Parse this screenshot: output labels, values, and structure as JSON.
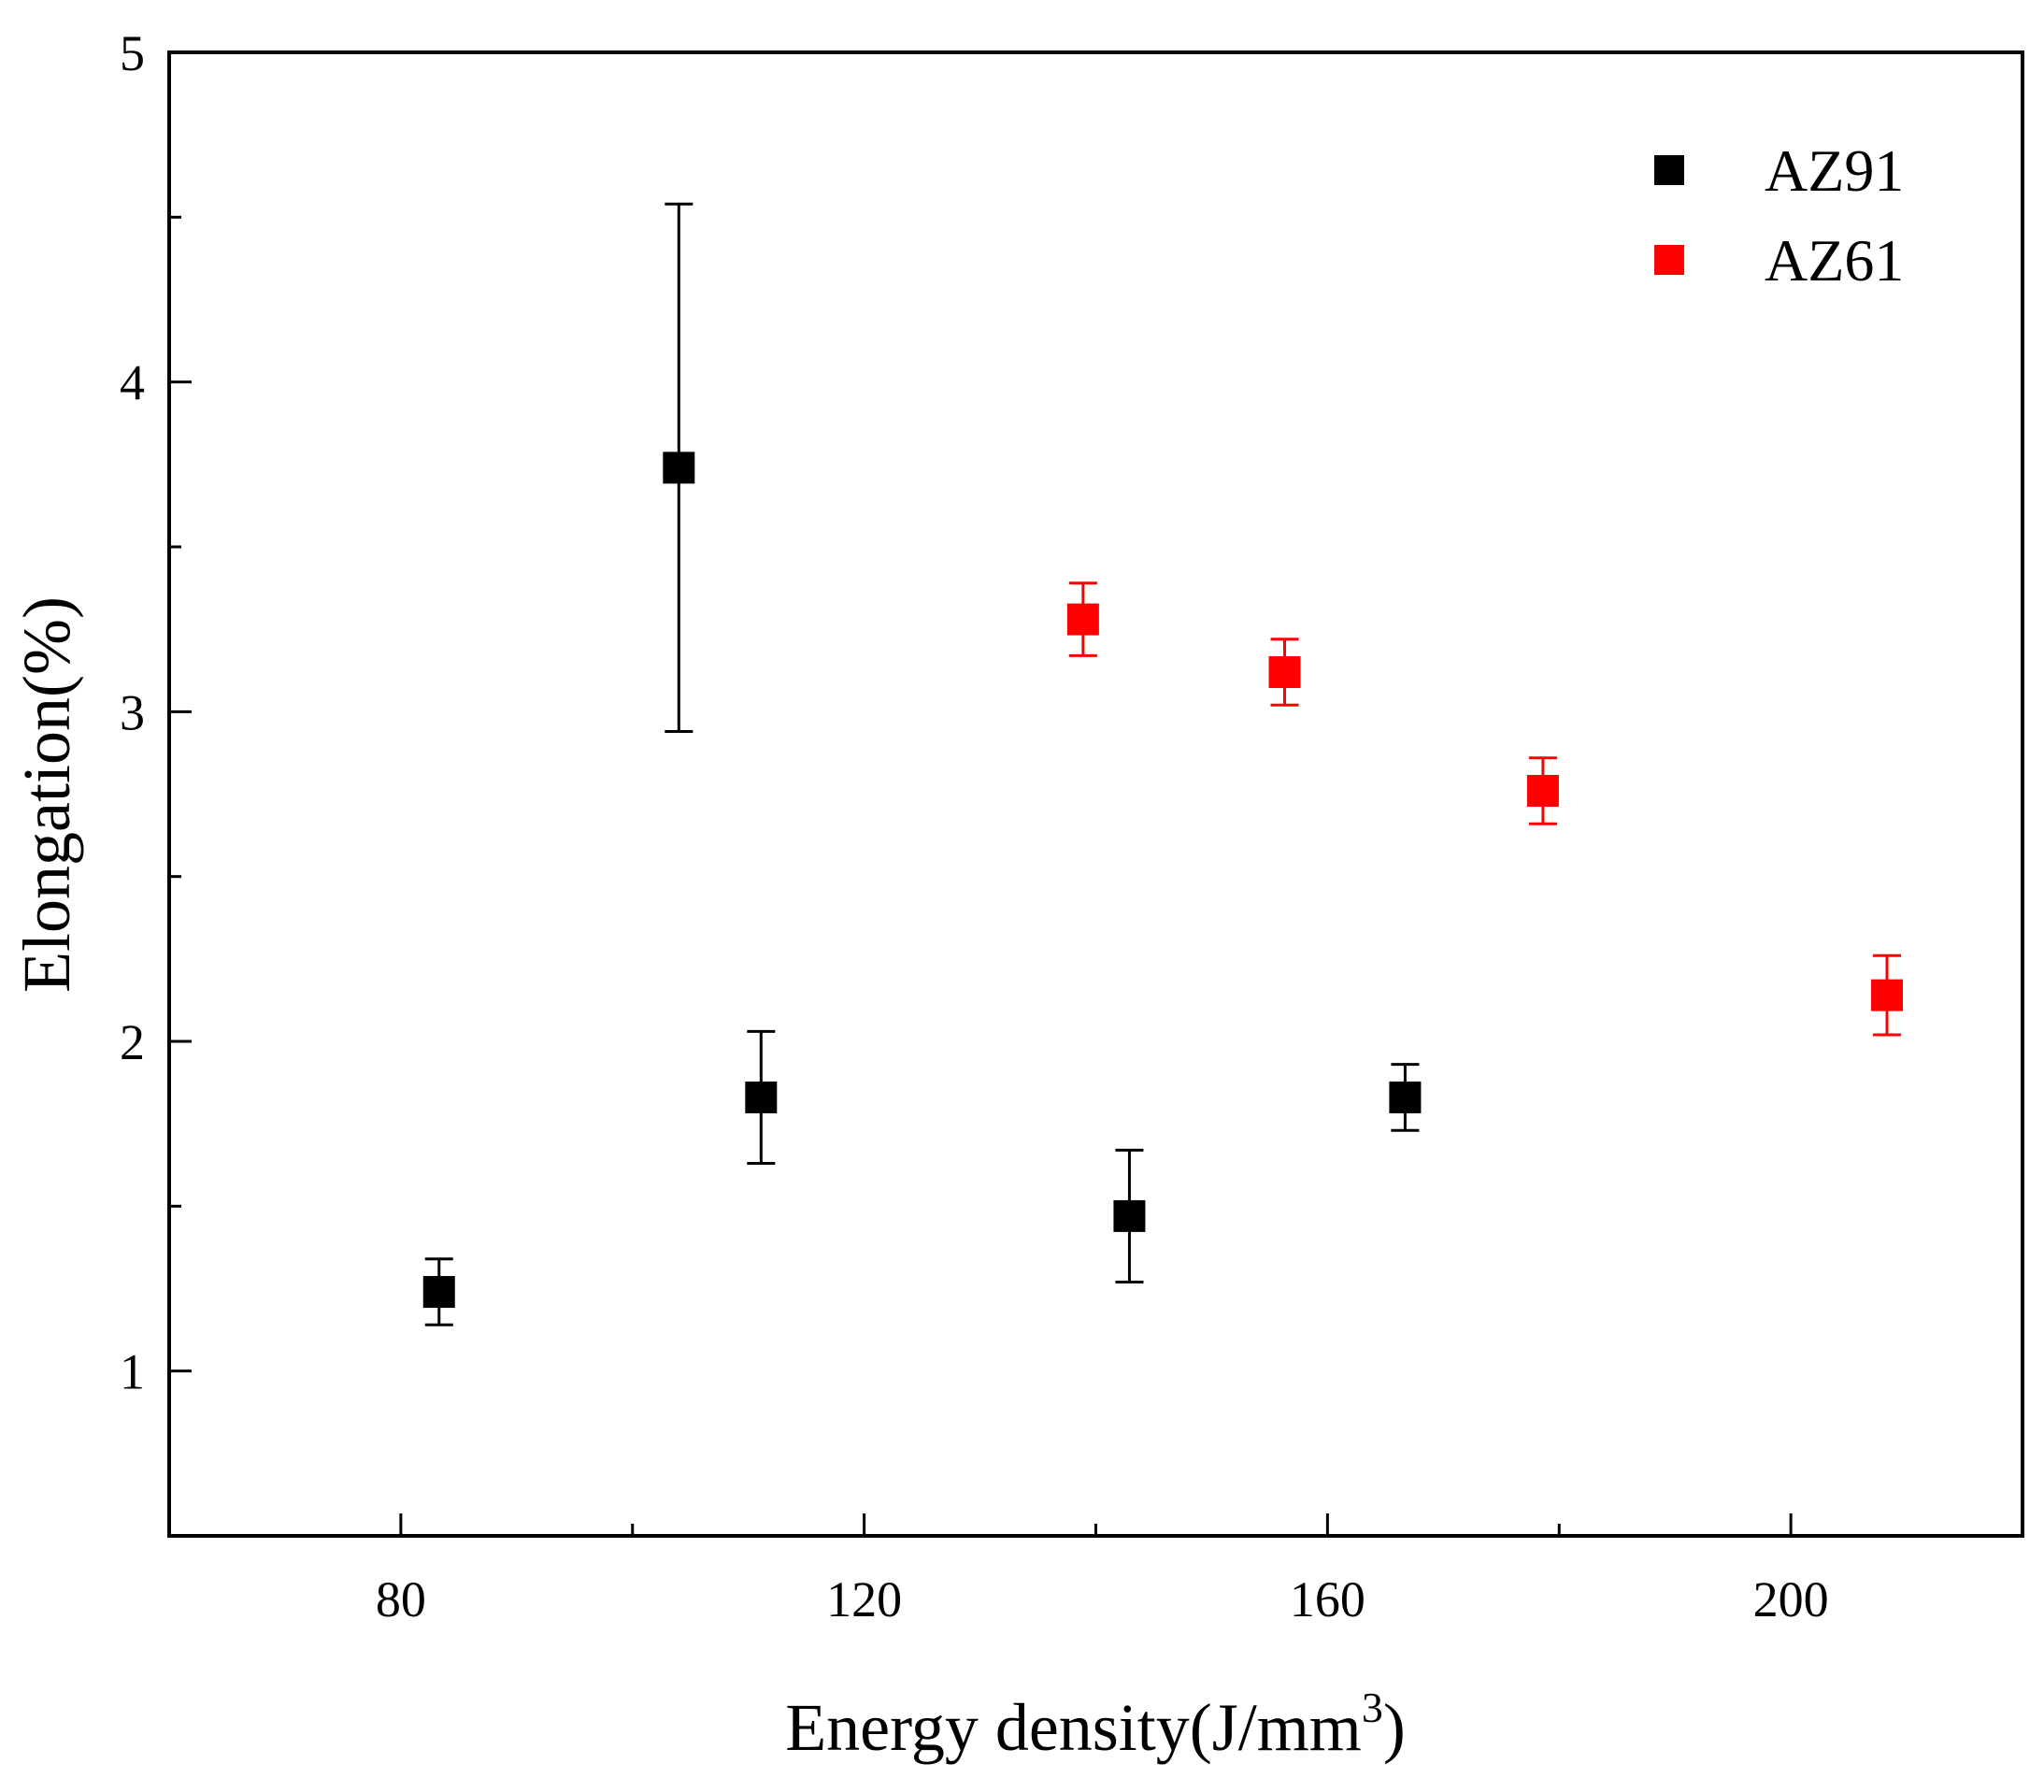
{
  "chart_data": {
    "type": "scatter",
    "title": "",
    "xlabel": "Energy density(J/mm",
    "xlabel_superscript": "3",
    "xlabel_suffix": ")",
    "ylabel": "Elongation(%)",
    "xlim": [
      60,
      220
    ],
    "ylim": [
      0.5,
      5
    ],
    "x_major_ticks": [
      80,
      120,
      160,
      200
    ],
    "x_minor_ticks": [
      100,
      140,
      180
    ],
    "y_major_ticks": [
      1,
      2,
      3,
      4,
      5
    ],
    "y_minor_ticks": [
      1.5,
      2.5,
      3.5,
      4.5
    ],
    "grid": false,
    "legend_position": "top-right",
    "series": [
      {
        "name": "AZ91",
        "color": "#000000",
        "errorbar_color": "#000000",
        "points": [
          {
            "x": 83.3,
            "y": 1.24,
            "err": 0.1
          },
          {
            "x": 104,
            "y": 3.74,
            "err": 0.8
          },
          {
            "x": 111.1,
            "y": 1.83,
            "err": 0.2
          },
          {
            "x": 142.9,
            "y": 1.47,
            "err": 0.2
          },
          {
            "x": 166.7,
            "y": 1.83,
            "err": 0.1
          }
        ]
      },
      {
        "name": "AZ61",
        "color": "#ff0000",
        "errorbar_color": "#ff0000",
        "points": [
          {
            "x": 138.9,
            "y": 3.28,
            "err": 0.11
          },
          {
            "x": 156.3,
            "y": 3.12,
            "err": 0.1
          },
          {
            "x": 178.6,
            "y": 2.76,
            "err": 0.1
          },
          {
            "x": 208.3,
            "y": 2.14,
            "err": 0.12
          }
        ]
      }
    ]
  }
}
